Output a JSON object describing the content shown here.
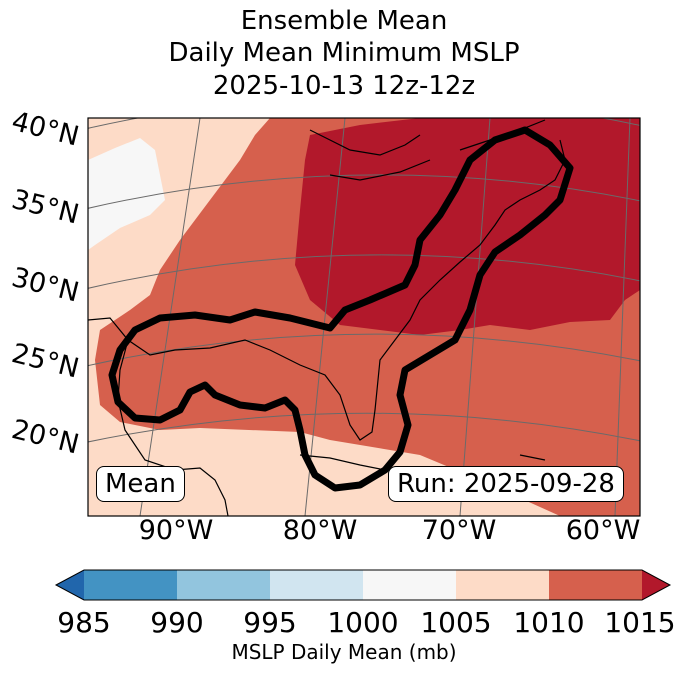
{
  "title": {
    "line1": "Ensemble Mean",
    "line2": "Daily Mean Minimum MSLP",
    "line3": "2025-10-13 12z-12z"
  },
  "map": {
    "lat_labels": [
      "40°N",
      "35°N",
      "30°N",
      "25°N",
      "20°N"
    ],
    "lon_labels": [
      "90°W",
      "80°W",
      "70°W",
      "60°W"
    ],
    "left_box": "Mean",
    "right_box": "Run: 2025-09-28"
  },
  "colorbar": {
    "label": "MSLP Daily Mean (mb)",
    "ticks": [
      "985",
      "990",
      "995",
      "1000",
      "1005",
      "1010",
      "1015"
    ],
    "colors": {
      "under": "#2166ac",
      "c985": "#4393c3",
      "c990": "#92c5de",
      "c995": "#d1e5f0",
      "c1000": "#f7f7f7",
      "c1005": "#fddbc7",
      "c1010": "#d6604d",
      "over": "#b2182b"
    }
  }
}
